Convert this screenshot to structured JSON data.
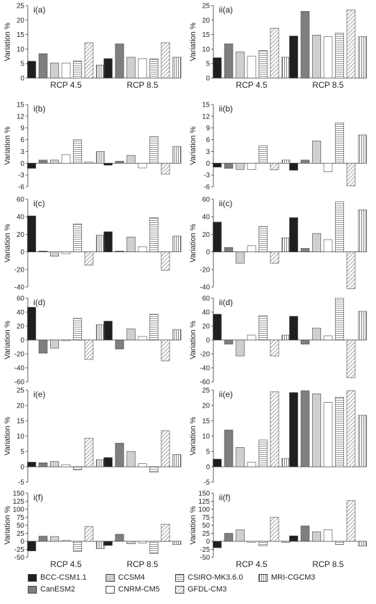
{
  "patterns": {
    "BCC-CSM1.1": "solid-black",
    "CanESM2": "solid-gray",
    "CCSM4": "solid-lightgray",
    "CNRM-CM5": "white",
    "CSIRO-MK3.6.0": "light-horizontal-lines",
    "GFDL-CM3": "diagonal-hatch",
    "MRI-CGCM3": "vertical-lines"
  },
  "colors": {
    "BCC-CSM1.1": "#1f1f1f",
    "CanESM2": "#7f7f7f",
    "CCSM4": "#cfcfcf",
    "outline": "#444444"
  },
  "legend": {
    "items": [
      {
        "name": "BCC-CSM1.1",
        "key": "BCC-CSM1.1"
      },
      {
        "name": "CCSM4",
        "key": "CCSM4"
      },
      {
        "name": "CSIRO-MK3.6.0",
        "key": "CSIRO-MK3.6.0"
      },
      {
        "name": "MRI-CGCM3",
        "key": "MRI-CGCM3"
      },
      {
        "name": "CanESM2",
        "key": "CanESM2"
      },
      {
        "name": "CNRM-CM5",
        "key": "CNRM-CM5"
      },
      {
        "name": "GFDL-CM3",
        "key": "GFDL-CM3"
      }
    ]
  },
  "chart_data": [
    {
      "type": "bar",
      "title": "i(a)",
      "ylabel": "Variation %",
      "categories": [
        "RCP 4.5",
        "RCP 8.5"
      ],
      "ylim": [
        0,
        25
      ],
      "yticks": [
        0,
        5,
        10,
        15,
        20,
        25
      ],
      "grid": false,
      "show_xlabels": true,
      "series": [
        {
          "name": "BCC-CSM1.1",
          "values": [
            5.8,
            6.7
          ]
        },
        {
          "name": "CanESM2",
          "values": [
            8.4,
            11.8
          ]
        },
        {
          "name": "CCSM4",
          "values": [
            5.2,
            7.2
          ]
        },
        {
          "name": "CNRM-CM5",
          "values": [
            5.2,
            6.7
          ]
        },
        {
          "name": "CSIRO-MK3.6.0",
          "values": [
            5.9,
            6.6
          ]
        },
        {
          "name": "GFDL-CM3",
          "values": [
            12.2,
            12.2
          ]
        },
        {
          "name": "MRI-CGCM3",
          "values": [
            4.5,
            7.2
          ]
        }
      ]
    },
    {
      "type": "bar",
      "title": "ii(a)",
      "ylabel": "Variation %",
      "categories": [
        "RCP 4.5",
        "RCP 8.5"
      ],
      "ylim": [
        0,
        25
      ],
      "yticks": [
        0,
        5,
        10,
        15,
        20,
        25
      ],
      "grid": false,
      "show_xlabels": true,
      "series": [
        {
          "name": "BCC-CSM1.1",
          "values": [
            7.0,
            14.5
          ]
        },
        {
          "name": "CanESM2",
          "values": [
            11.8,
            23.0
          ]
        },
        {
          "name": "CCSM4",
          "values": [
            9.0,
            14.8
          ]
        },
        {
          "name": "CNRM-CM5",
          "values": [
            7.5,
            14.3
          ]
        },
        {
          "name": "CSIRO-MK3.6.0",
          "values": [
            9.5,
            15.5
          ]
        },
        {
          "name": "GFDL-CM3",
          "values": [
            17.2,
            23.5
          ]
        },
        {
          "name": "MRI-CGCM3",
          "values": [
            7.2,
            14.3
          ]
        }
      ]
    },
    {
      "type": "bar",
      "title": "i(b)",
      "ylabel": "Variation %",
      "categories": [
        "RCP 4.5",
        "RCP 8.5"
      ],
      "ylim": [
        -6,
        15
      ],
      "yticks": [
        -6,
        -3,
        0,
        3,
        6,
        9,
        12,
        15
      ],
      "grid": false,
      "show_xlabels": false,
      "series": [
        {
          "name": "BCC-CSM1.1",
          "values": [
            -1.3,
            -0.5
          ]
        },
        {
          "name": "CanESM2",
          "values": [
            0.8,
            0.5
          ]
        },
        {
          "name": "CCSM4",
          "values": [
            0.8,
            2.0
          ]
        },
        {
          "name": "CNRM-CM5",
          "values": [
            2.2,
            -1.2
          ]
        },
        {
          "name": "CSIRO-MK3.6.0",
          "values": [
            6.0,
            6.8
          ]
        },
        {
          "name": "GFDL-CM3",
          "values": [
            0.3,
            -2.8
          ]
        },
        {
          "name": "MRI-CGCM3",
          "values": [
            3.0,
            4.3
          ]
        }
      ]
    },
    {
      "type": "bar",
      "title": "ii(b)",
      "ylabel": "Variation %",
      "categories": [
        "RCP 4.5",
        "RCP 8.5"
      ],
      "ylim": [
        -6,
        15
      ],
      "yticks": [
        -6,
        -3,
        0,
        3,
        6,
        9,
        12,
        15
      ],
      "grid": false,
      "show_xlabels": false,
      "series": [
        {
          "name": "BCC-CSM1.1",
          "values": [
            -1.0,
            -1.8
          ]
        },
        {
          "name": "CanESM2",
          "values": [
            -1.3,
            0.8
          ]
        },
        {
          "name": "CCSM4",
          "values": [
            -1.6,
            5.7
          ]
        },
        {
          "name": "CNRM-CM5",
          "values": [
            -1.6,
            -2.2
          ]
        },
        {
          "name": "CSIRO-MK3.6.0",
          "values": [
            4.5,
            10.3
          ]
        },
        {
          "name": "GFDL-CM3",
          "values": [
            -1.7,
            -5.8
          ]
        },
        {
          "name": "MRI-CGCM3",
          "values": [
            0.8,
            7.2
          ]
        }
      ]
    },
    {
      "type": "bar",
      "title": "i(c)",
      "ylabel": "Variation %",
      "categories": [
        "RCP 4.5",
        "RCP 8.5"
      ],
      "ylim": [
        -40,
        60
      ],
      "yticks": [
        -40,
        -20,
        0,
        20,
        40,
        60
      ],
      "grid": false,
      "show_xlabels": false,
      "series": [
        {
          "name": "BCC-CSM1.1",
          "values": [
            41,
            23
          ]
        },
        {
          "name": "CanESM2",
          "values": [
            1,
            1
          ]
        },
        {
          "name": "CCSM4",
          "values": [
            -5,
            17
          ]
        },
        {
          "name": "CNRM-CM5",
          "values": [
            -2,
            6
          ]
        },
        {
          "name": "CSIRO-MK3.6.0",
          "values": [
            32,
            39
          ]
        },
        {
          "name": "GFDL-CM3",
          "values": [
            -15,
            -21
          ]
        },
        {
          "name": "MRI-CGCM3",
          "values": [
            19,
            18
          ]
        }
      ]
    },
    {
      "type": "bar",
      "title": "ii(c)",
      "ylabel": "Variation %",
      "categories": [
        "RCP 4.5",
        "RCP 8.5"
      ],
      "ylim": [
        -40,
        60
      ],
      "yticks": [
        -40,
        -20,
        0,
        20,
        40,
        60
      ],
      "grid": false,
      "show_xlabels": false,
      "series": [
        {
          "name": "BCC-CSM1.1",
          "values": [
            34,
            39
          ]
        },
        {
          "name": "CanESM2",
          "values": [
            5,
            4
          ]
        },
        {
          "name": "CCSM4",
          "values": [
            -13,
            21
          ]
        },
        {
          "name": "CNRM-CM5",
          "values": [
            7,
            14
          ]
        },
        {
          "name": "CSIRO-MK3.6.0",
          "values": [
            29,
            57
          ]
        },
        {
          "name": "GFDL-CM3",
          "values": [
            -13,
            -42
          ]
        },
        {
          "name": "MRI-CGCM3",
          "values": [
            16,
            48
          ]
        }
      ]
    },
    {
      "type": "bar",
      "title": "i(d)",
      "ylabel": "Variation %",
      "categories": [
        "RCP 4.5",
        "RCP 8.5"
      ],
      "ylim": [
        -60,
        60
      ],
      "yticks": [
        -60,
        -40,
        -20,
        0,
        20,
        40,
        60
      ],
      "grid": false,
      "show_xlabels": false,
      "series": [
        {
          "name": "BCC-CSM1.1",
          "values": [
            47,
            27
          ]
        },
        {
          "name": "CanESM2",
          "values": [
            -19,
            -13
          ]
        },
        {
          "name": "CCSM4",
          "values": [
            -12,
            16
          ]
        },
        {
          "name": "CNRM-CM5",
          "values": [
            -1,
            5
          ]
        },
        {
          "name": "CSIRO-MK3.6.0",
          "values": [
            31,
            37
          ]
        },
        {
          "name": "GFDL-CM3",
          "values": [
            -28,
            -30
          ]
        },
        {
          "name": "MRI-CGCM3",
          "values": [
            22,
            15
          ]
        }
      ]
    },
    {
      "type": "bar",
      "title": "ii(d)",
      "ylabel": "Variation %",
      "categories": [
        "RCP 4.5",
        "RCP 8.5"
      ],
      "ylim": [
        -60,
        60
      ],
      "yticks": [
        -60,
        -40,
        -20,
        0,
        20,
        40,
        60
      ],
      "grid": false,
      "show_xlabels": false,
      "series": [
        {
          "name": "BCC-CSM1.1",
          "values": [
            37,
            34
          ]
        },
        {
          "name": "CanESM2",
          "values": [
            -6,
            -6
          ]
        },
        {
          "name": "CCSM4",
          "values": [
            -23,
            17
          ]
        },
        {
          "name": "CNRM-CM5",
          "values": [
            7,
            6
          ]
        },
        {
          "name": "CSIRO-MK3.6.0",
          "values": [
            35,
            60
          ]
        },
        {
          "name": "GFDL-CM3",
          "values": [
            -23,
            -54
          ]
        },
        {
          "name": "MRI-CGCM3",
          "values": [
            7,
            41
          ]
        }
      ]
    },
    {
      "type": "bar",
      "title": "i(e)",
      "ylabel": "Variation %",
      "categories": [
        "RCP 4.5",
        "RCP 8.5"
      ],
      "ylim": [
        -5,
        25
      ],
      "yticks": [
        -5,
        0,
        5,
        10,
        15,
        20,
        25
      ],
      "grid": false,
      "show_xlabels": false,
      "series": [
        {
          "name": "BCC-CSM1.1",
          "values": [
            1.5,
            3.0
          ]
        },
        {
          "name": "CanESM2",
          "values": [
            1.3,
            7.7
          ]
        },
        {
          "name": "CCSM4",
          "values": [
            1.7,
            5.0
          ]
        },
        {
          "name": "CNRM-CM5",
          "values": [
            0.7,
            1.0
          ]
        },
        {
          "name": "CSIRO-MK3.6.0",
          "values": [
            -1.0,
            -1.8
          ]
        },
        {
          "name": "GFDL-CM3",
          "values": [
            9.3,
            11.8
          ]
        },
        {
          "name": "MRI-CGCM3",
          "values": [
            2.3,
            4.0
          ]
        }
      ]
    },
    {
      "type": "bar",
      "title": "ii(e)",
      "ylabel": "Variation %",
      "categories": [
        "RCP 4.5",
        "RCP 8.5"
      ],
      "ylim": [
        -5,
        25
      ],
      "yticks": [
        -5,
        0,
        5,
        10,
        15,
        20,
        25
      ],
      "grid": false,
      "show_xlabels": false,
      "series": [
        {
          "name": "BCC-CSM1.1",
          "values": [
            2.5,
            24.2
          ]
        },
        {
          "name": "CanESM2",
          "values": [
            12.0,
            24.8
          ]
        },
        {
          "name": "CCSM4",
          "values": [
            6.3,
            23.8
          ]
        },
        {
          "name": "CNRM-CM5",
          "values": [
            1.5,
            21.0
          ]
        },
        {
          "name": "CSIRO-MK3.6.0",
          "values": [
            8.7,
            22.7
          ]
        },
        {
          "name": "GFDL-CM3",
          "values": [
            24.5,
            24.8
          ]
        },
        {
          "name": "MRI-CGCM3",
          "values": [
            2.7,
            16.8
          ]
        }
      ]
    },
    {
      "type": "bar",
      "title": "i(f)",
      "ylabel": "Variation %",
      "categories": [
        "RCP 4.5",
        "RCP 8.5"
      ],
      "ylim": [
        -50,
        150
      ],
      "yticks": [
        -50,
        -25,
        0,
        25,
        50,
        75,
        100,
        125,
        150
      ],
      "grid": false,
      "show_xlabels": true,
      "series": [
        {
          "name": "BCC-CSM1.1",
          "values": [
            -30,
            -13
          ]
        },
        {
          "name": "CanESM2",
          "values": [
            16,
            22
          ]
        },
        {
          "name": "CCSM4",
          "values": [
            15,
            -8
          ]
        },
        {
          "name": "CNRM-CM5",
          "values": [
            3,
            -5
          ]
        },
        {
          "name": "CSIRO-MK3.6.0",
          "values": [
            -32,
            -38
          ]
        },
        {
          "name": "GFDL-CM3",
          "values": [
            46,
            53
          ]
        },
        {
          "name": "MRI-CGCM3",
          "values": [
            -23,
            -10
          ]
        }
      ]
    },
    {
      "type": "bar",
      "title": "ii(f)",
      "ylabel": "Variation %",
      "categories": [
        "RCP 4.5",
        "RCP 8.5"
      ],
      "ylim": [
        -50,
        150
      ],
      "yticks": [
        -50,
        -25,
        0,
        25,
        50,
        75,
        100,
        125,
        150
      ],
      "grid": false,
      "show_xlabels": true,
      "series": [
        {
          "name": "BCC-CSM1.1",
          "values": [
            -20,
            17
          ]
        },
        {
          "name": "CanESM2",
          "values": [
            25,
            48
          ]
        },
        {
          "name": "CCSM4",
          "values": [
            36,
            30
          ]
        },
        {
          "name": "CNRM-CM5",
          "values": [
            -3,
            36
          ]
        },
        {
          "name": "CSIRO-MK3.6.0",
          "values": [
            -14,
            -10
          ]
        },
        {
          "name": "GFDL-CM3",
          "values": [
            75,
            127
          ]
        },
        {
          "name": "MRI-CGCM3",
          "values": [
            -3,
            -15
          ]
        }
      ]
    }
  ]
}
